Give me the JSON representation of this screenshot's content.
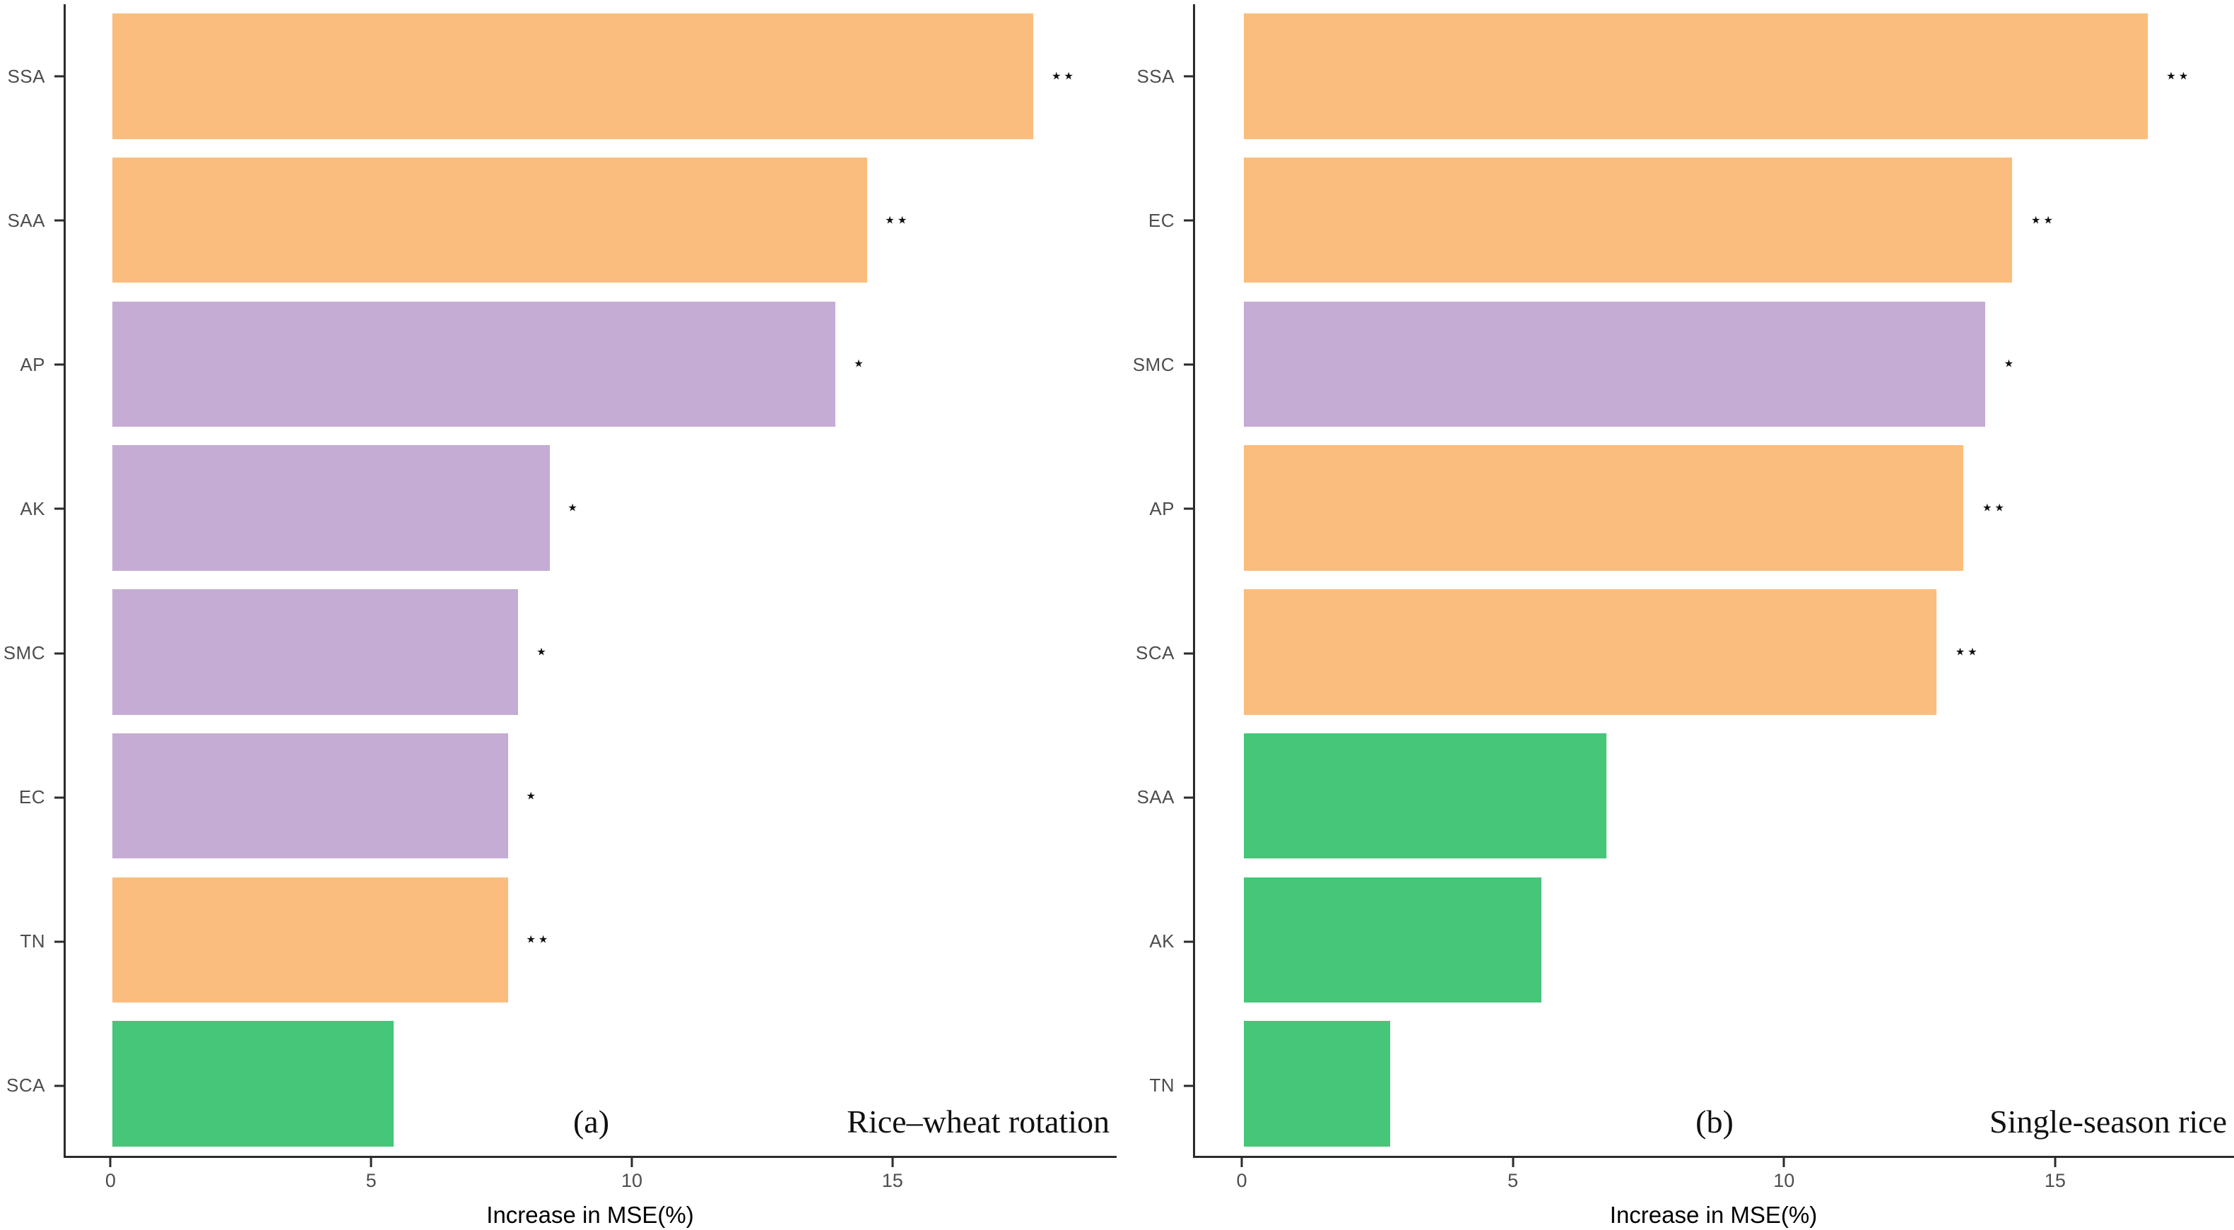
{
  "colors": {
    "orange": "#FBBD7E",
    "purple": "#C5ACD4",
    "green": "#45C679",
    "axis_line": "#2b2b2b",
    "tick_text": "#4d4d4d",
    "label_text": "#4d4d4d"
  },
  "xlabel": "Increase in MSE(%)",
  "chart_data": [
    {
      "type": "bar",
      "orientation": "horizontal",
      "caption": "(a)",
      "title": "Rice–wheat rotation",
      "xlabel": "Increase in MSE(%)",
      "xticks": [
        0,
        5,
        10,
        15
      ],
      "xlim": [
        0,
        19.3
      ],
      "origin_units": 0.9,
      "total_units": 20.2,
      "grid": false,
      "legend": "none",
      "categories": [
        "SSA",
        "SAA",
        "AP",
        "AK",
        "SMC",
        "EC",
        "TN",
        "SCA"
      ],
      "values": [
        17.7,
        14.5,
        13.9,
        8.4,
        7.8,
        7.6,
        7.6,
        5.4
      ],
      "bar_colors": [
        "orange",
        "orange",
        "purple",
        "purple",
        "purple",
        "purple",
        "orange",
        "green"
      ],
      "significance": [
        "**",
        "**",
        "*",
        "*",
        "*",
        "*",
        "**",
        ""
      ]
    },
    {
      "type": "bar",
      "orientation": "horizontal",
      "caption": "(b)",
      "title": "Single-season rice",
      "xlabel": "Increase in MSE(%)",
      "xticks": [
        0,
        5,
        10,
        15
      ],
      "xlim": [
        0,
        18.3
      ],
      "origin_units": 0.9,
      "total_units": 19.2,
      "grid": false,
      "legend": "none",
      "categories": [
        "SSA",
        "EC",
        "SMC",
        "AP",
        "SCA",
        "SAA",
        "AK",
        "TN"
      ],
      "values": [
        16.7,
        14.2,
        13.7,
        13.3,
        12.8,
        6.7,
        5.5,
        2.7
      ],
      "bar_colors": [
        "orange",
        "orange",
        "purple",
        "orange",
        "orange",
        "green",
        "green",
        "green"
      ],
      "significance": [
        "**",
        "**",
        "*",
        "**",
        "**",
        "",
        "",
        ""
      ]
    }
  ]
}
